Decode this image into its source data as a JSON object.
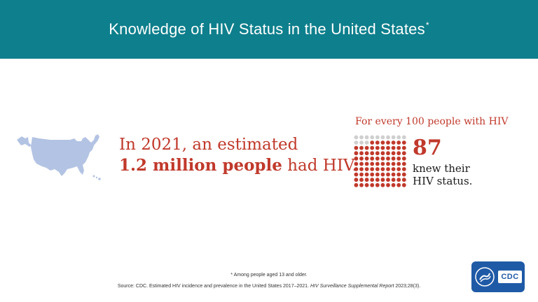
{
  "header": {
    "title": "Knowledge of HIV Status in the United States",
    "title_mark": "*"
  },
  "stat": {
    "line1": "In 2021, an estimated",
    "highlight": "1.2 million people",
    "rest": " had HIV."
  },
  "ratio": {
    "heading": "For every 100 people with HIV",
    "count": "87",
    "caption_line1": "knew their",
    "caption_line2": "HIV status.",
    "total": 100,
    "known": 87
  },
  "colors": {
    "header_bg": "#0e7f8c",
    "accent": "#c0392b",
    "dot_unknown": "#cfcfcf",
    "map": "#b3c3e3",
    "logo_bg": "#1f5aa6"
  },
  "footnote": "* Among people aged 13 and older.",
  "source": {
    "prefix": "Source: CDC. Estimated HIV incidence and prevalence in the United States 2017–2021. ",
    "journal": "HIV Surveillance Supplemental Report",
    "suffix": " 2023;28(3)."
  },
  "logo": {
    "text": "CDC",
    "icon": "hhs-seal-icon"
  }
}
